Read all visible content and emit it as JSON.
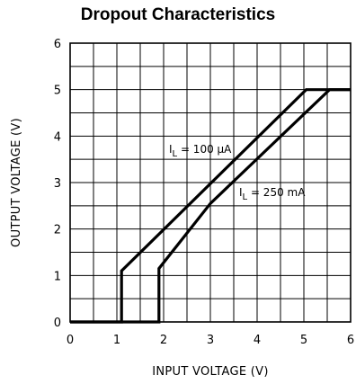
{
  "chart_data": {
    "type": "line",
    "title": "Dropout Characteristics",
    "xlabel": "INPUT VOLTAGE (V)",
    "ylabel": "OUTPUT VOLTAGE (V)",
    "xlim": [
      0,
      6
    ],
    "ylim": [
      0,
      6
    ],
    "xticks": [
      "0",
      "1",
      "2",
      "3",
      "4",
      "5",
      "6"
    ],
    "yticks": [
      "0",
      "1",
      "2",
      "3",
      "4",
      "5",
      "6"
    ],
    "grid": true,
    "series": [
      {
        "name": "IL = 100 µA",
        "label_main": "I",
        "label_sub": "L",
        "label_rest": " = 100 µA",
        "points": [
          [
            0,
            0
          ],
          [
            1.1,
            0
          ],
          [
            1.1,
            1.1
          ],
          [
            5.05,
            5.0
          ],
          [
            6,
            5.0
          ]
        ]
      },
      {
        "name": "IL = 250 mA",
        "label_main": "I",
        "label_sub": "L",
        "label_rest": " = 250 mA",
        "points": [
          [
            0,
            0
          ],
          [
            1.9,
            0
          ],
          [
            1.9,
            1.15
          ],
          [
            3.0,
            2.55
          ],
          [
            5.55,
            5.0
          ],
          [
            6,
            5.0
          ]
        ]
      }
    ]
  }
}
